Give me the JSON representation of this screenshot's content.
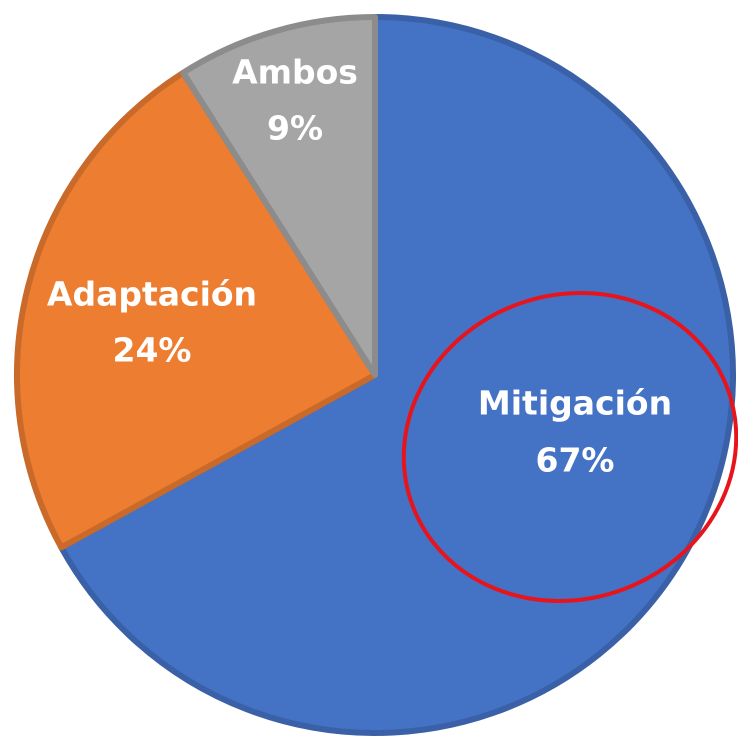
{
  "chart_data": {
    "type": "pie",
    "categories": [
      "Mitigación",
      "Adaptación",
      "Ambos"
    ],
    "values": [
      67,
      24,
      9
    ],
    "value_labels": [
      "67%",
      "24%",
      "9%"
    ],
    "colors": [
      "#4472c4",
      "#ed7d31",
      "#a5a5a5"
    ]
  }
}
